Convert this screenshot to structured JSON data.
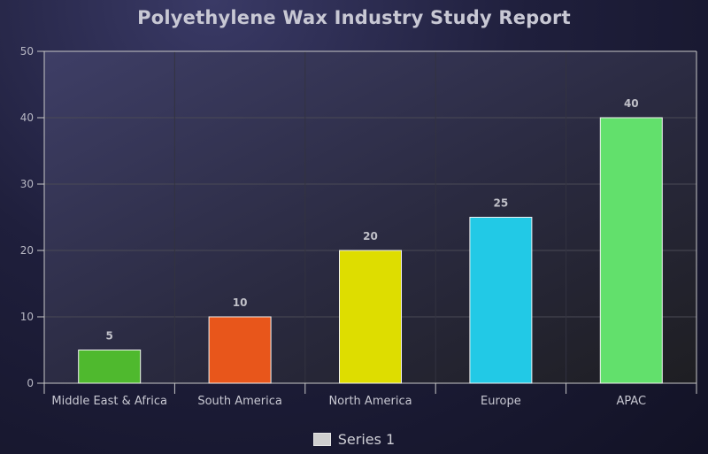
{
  "chart_data": {
    "type": "bar",
    "title": "Polyethylene Wax Industry Study Report",
    "xlabel": "",
    "ylabel": "",
    "categories": [
      "Middle East & Africa",
      "South America",
      "North America",
      "Europe",
      "APAC"
    ],
    "series": [
      {
        "name": "Series 1",
        "values": [
          5,
          10,
          20,
          25,
          40
        ]
      }
    ],
    "bar_colors": [
      "#4fb92e",
      "#e8561b",
      "#dedd00",
      "#22c9e6",
      "#62e06c"
    ],
    "ylim": [
      0,
      50
    ],
    "yticks": [
      0,
      10,
      20,
      30,
      40,
      50
    ],
    "grid": true,
    "legend_position": "bottom",
    "data_labels": true
  }
}
